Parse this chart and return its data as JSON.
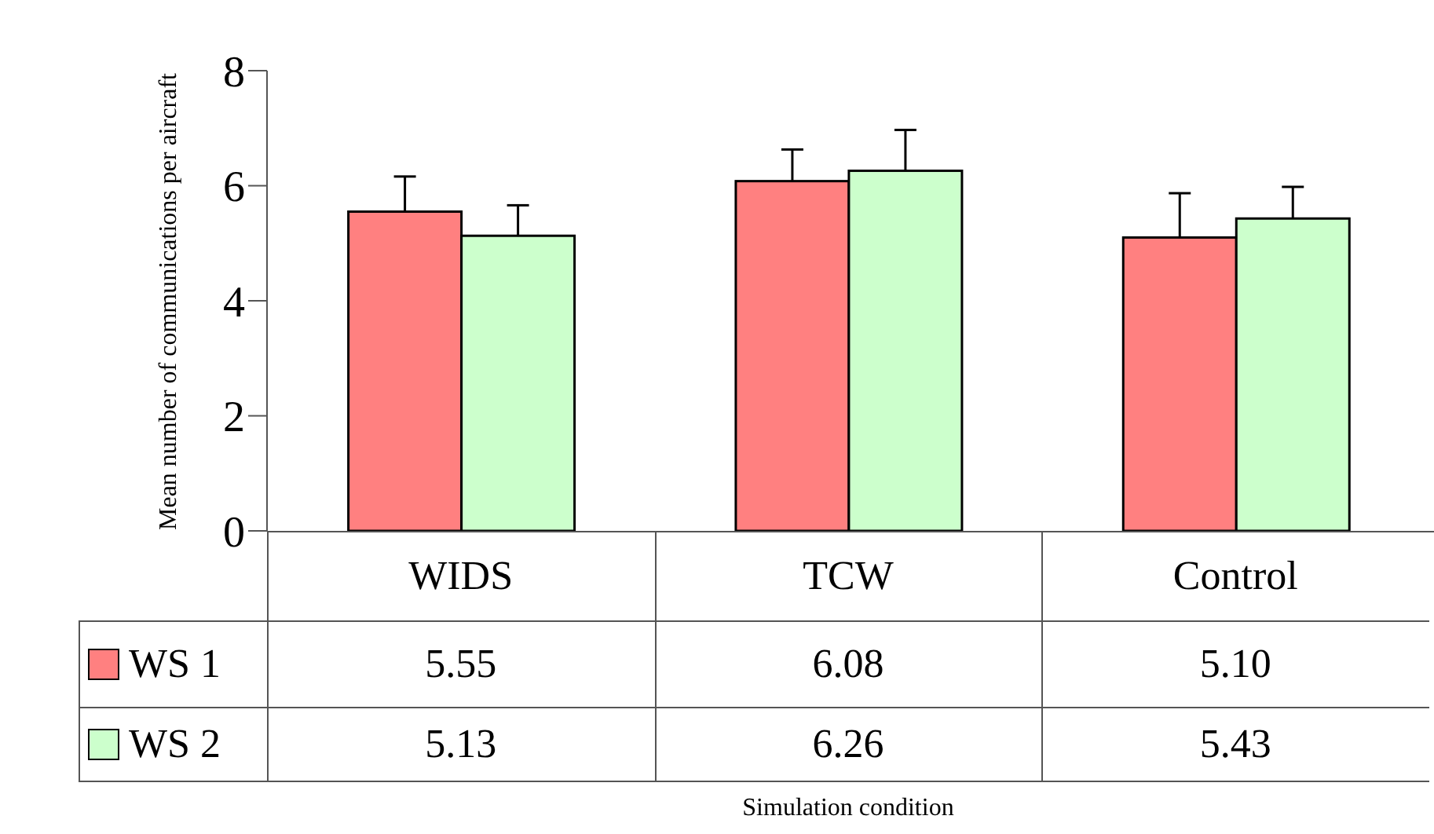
{
  "chart_data": {
    "type": "bar",
    "annotations": [
      "Simulation condition"
    ],
    "ylabel": "Mean number of communications per aircraft",
    "categories": [
      "WIDS",
      "TCW",
      "Control"
    ],
    "series": [
      {
        "name": "WS 1",
        "color": "#ff8080",
        "values": [
          5.55,
          6.08,
          5.1
        ],
        "value_labels": [
          "5.55",
          "6.08",
          "5.10"
        ],
        "errors": [
          0.61,
          0.55,
          0.77
        ]
      },
      {
        "name": "WS 2",
        "color": "#ccffcc",
        "values": [
          5.13,
          6.26,
          5.43
        ],
        "value_labels": [
          "5.13",
          "6.26",
          "5.43"
        ],
        "errors": [
          0.53,
          0.71,
          0.55
        ]
      }
    ],
    "ylim": [
      0,
      8
    ],
    "yticks": [
      0,
      2,
      4,
      6,
      8
    ],
    "legend": "bottom"
  }
}
